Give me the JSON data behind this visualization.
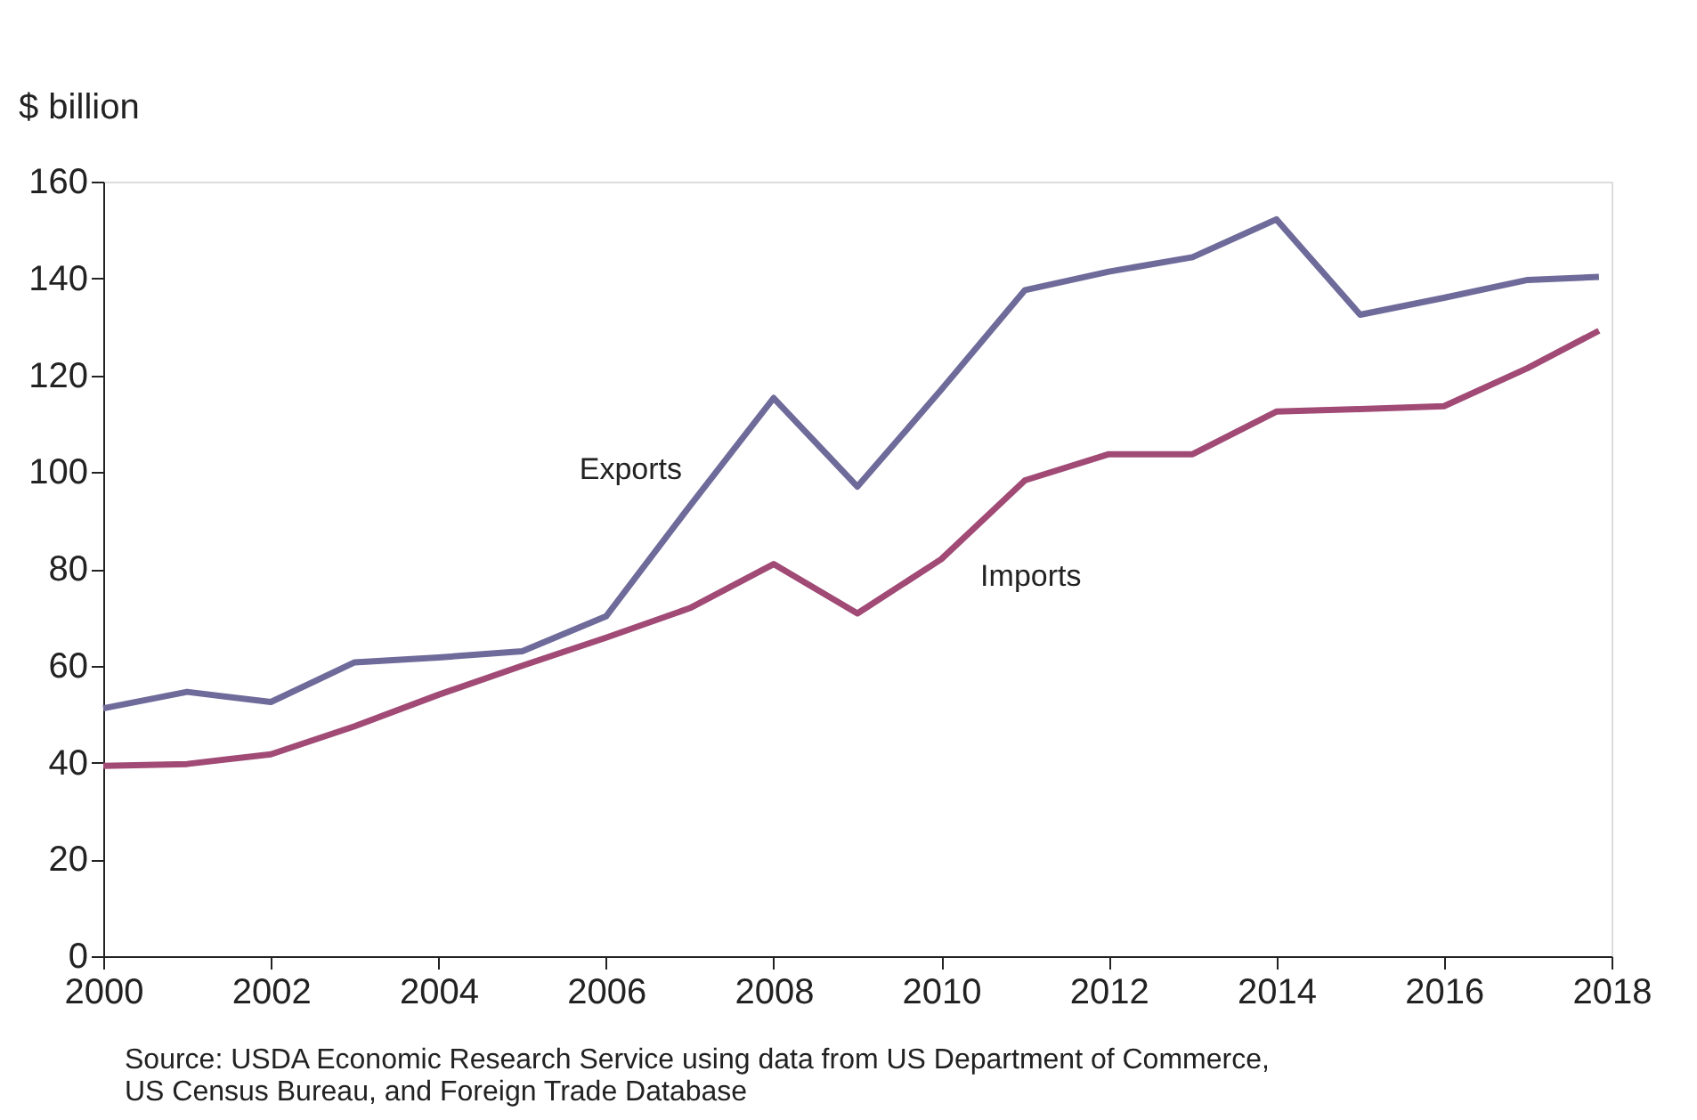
{
  "chart_data": {
    "type": "line",
    "ylabel": "$ billion",
    "x": [
      2000,
      2001,
      2002,
      2003,
      2004,
      2005,
      2006,
      2007,
      2008,
      2009,
      2010,
      2011,
      2012,
      2013,
      2014,
      2015,
      2016,
      2017,
      2017.85
    ],
    "series": [
      {
        "name": "Exports",
        "color": "#6e6a9a",
        "values": [
          51.2,
          54.6,
          52.5,
          60.7,
          61.7,
          63,
          70.2,
          93,
          115.3,
          97,
          117,
          137.6,
          141.4,
          144.4,
          152.2,
          132.5,
          136,
          139.7,
          140.3
        ]
      },
      {
        "name": "Imports",
        "color": "#a04a75",
        "values": [
          39.3,
          39.7,
          41.7,
          47.5,
          54,
          60,
          65.8,
          71.9,
          81,
          70.8,
          82,
          98.3,
          103.7,
          103.7,
          112.5,
          113,
          113.6,
          121.5,
          129.2
        ]
      }
    ],
    "xlim": [
      2000,
      2018
    ],
    "xticks": [
      2000,
      2002,
      2004,
      2006,
      2008,
      2010,
      2012,
      2014,
      2016,
      2018
    ],
    "ylim": [
      0,
      160
    ],
    "yticks": [
      0,
      20,
      40,
      60,
      80,
      100,
      120,
      140,
      160
    ],
    "grid": false,
    "legend": false,
    "marker": "none",
    "line_style": "solid",
    "annotations": [
      "Source: USDA Economic Research Service using data from US Department of Commerce,\nUS Census Bureau, and Foreign Trade Database"
    ]
  }
}
